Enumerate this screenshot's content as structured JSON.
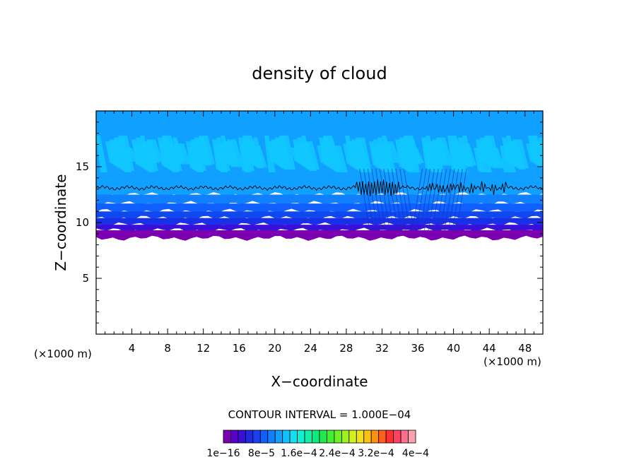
{
  "chart_data": {
    "type": "heatmap",
    "title": "density of cloud",
    "xlabel": "X−coordinate",
    "ylabel": "Z−coordinate",
    "x_unit_left": "(×1000 m)",
    "x_unit_right": "(×1000 m)",
    "xlim": [
      0,
      50
    ],
    "ylim": [
      0,
      20
    ],
    "x_ticks": [
      4,
      8,
      12,
      16,
      20,
      24,
      28,
      32,
      36,
      40,
      44,
      48
    ],
    "y_ticks": [
      5,
      10,
      15
    ],
    "contour_interval_label": "CONTOUR INTERVAL = 1.000E−04",
    "colorbar": {
      "colors": [
        "#7a00b0",
        "#5a00c8",
        "#3a10d8",
        "#2028e0",
        "#1a40f0",
        "#1060ff",
        "#1080ff",
        "#10a0ff",
        "#10c0ff",
        "#10e0f0",
        "#10f0d0",
        "#10f0a8",
        "#10e880",
        "#20e850",
        "#40f030",
        "#70f020",
        "#a0f020",
        "#d0f020",
        "#f0e020",
        "#ffc010",
        "#ff9010",
        "#ff6020",
        "#ff3030",
        "#ff4060",
        "#ff7090",
        "#ffa0b0"
      ],
      "tick_labels": [
        "1e−16",
        "8e−5",
        "1.6e−4",
        "2.4e−4",
        "3.2e−4",
        "4e−4"
      ]
    },
    "layers": [
      {
        "z_bottom": 8.6,
        "z_top": 9.3,
        "color": "#7a00b0"
      },
      {
        "z_bottom": 9.3,
        "z_top": 9.8,
        "color": "#3a10d8"
      },
      {
        "z_bottom": 9.8,
        "z_top": 10.4,
        "color": "#1a30e8"
      },
      {
        "z_bottom": 10.4,
        "z_top": 11.0,
        "color": "#1048f0"
      },
      {
        "z_bottom": 11.0,
        "z_top": 11.7,
        "color": "#1060ff"
      },
      {
        "z_bottom": 11.7,
        "z_top": 12.5,
        "color": "#1080ff"
      },
      {
        "z_bottom": 12.5,
        "z_top": 20.0,
        "color": "#10a0ff"
      }
    ],
    "bright_band": {
      "z_bottom": 14.5,
      "z_top": 17.8,
      "color": "#10c8ff"
    },
    "contour_line_z": 13.1
  }
}
